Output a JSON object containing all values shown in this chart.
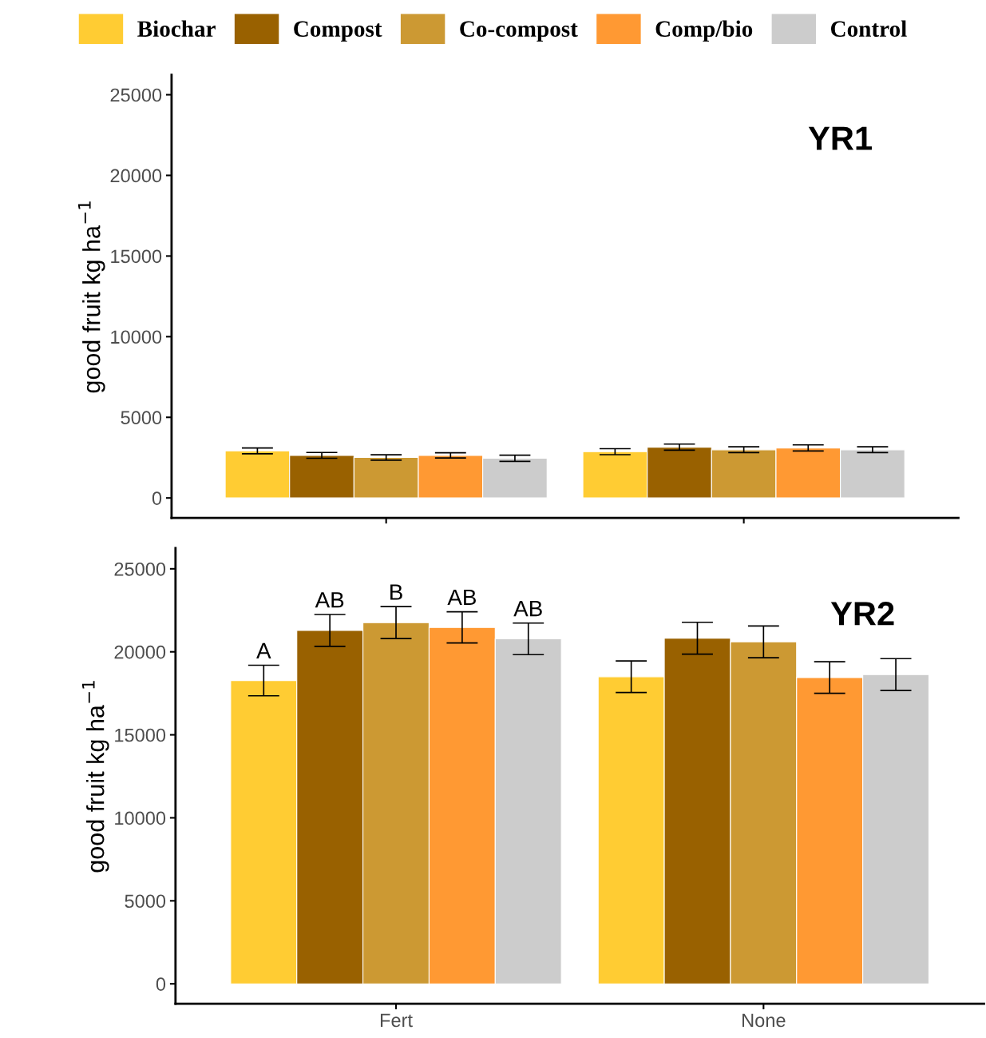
{
  "chart_data": [
    {
      "type": "bar",
      "title": "YR1",
      "ylabel": "good fruit kg ha$^{−1}$",
      "categories": [
        null,
        null
      ],
      "ylim": [
        -1240,
        26240
      ],
      "yticks": [
        0,
        5000,
        10000,
        15000,
        20000,
        25000
      ],
      "tick_labels": "y",
      "legend": "top",
      "grid": false,
      "series": [
        {
          "name": "Biochar",
          "color": "#ffcc33",
          "values": [
            2920,
            2870
          ],
          "errors": [
            180,
            185
          ]
        },
        {
          "name": "Compost",
          "color": "#996100",
          "values": [
            2640,
            3150
          ],
          "errors": [
            180,
            190
          ]
        },
        {
          "name": "Co-compost",
          "color": "#cc9933",
          "values": [
            2510,
            2990
          ],
          "errors": [
            170,
            180
          ]
        },
        {
          "name": "Comp/bio",
          "color": "#ff9933",
          "values": [
            2640,
            3100
          ],
          "errors": [
            160,
            190
          ]
        },
        {
          "name": "Control",
          "color": "#cccccc",
          "values": [
            2460,
            2990
          ],
          "errors": [
            190,
            180
          ]
        }
      ]
    },
    {
      "type": "bar",
      "title": "YR2",
      "ylabel": "good fruit kg ha$^{−1}$",
      "categories": [
        "Fert",
        "None"
      ],
      "ylim": [
        -1200,
        26250
      ],
      "yticks": [
        0,
        5000,
        10000,
        15000,
        20000,
        25000
      ],
      "grid": false,
      "series": [
        {
          "color": "#ffcc33",
          "values": [
            18270,
            18500
          ],
          "errors": [
            920,
            950
          ],
          "value_labels": [
            "A",
            null
          ]
        },
        {
          "color": "#996100",
          "values": [
            21290,
            20820
          ],
          "errors": [
            960,
            960
          ],
          "value_labels": [
            "AB",
            null
          ]
        },
        {
          "color": "#cc9933",
          "values": [
            21760,
            20600
          ],
          "errors": [
            960,
            960
          ],
          "value_labels": [
            "B",
            null
          ]
        },
        {
          "color": "#ff9933",
          "values": [
            21470,
            18450
          ],
          "errors": [
            940,
            950
          ],
          "value_labels": [
            "AB",
            null
          ]
        },
        {
          "color": "#cccccc",
          "values": [
            20780,
            18630
          ],
          "errors": [
            950,
            960
          ],
          "value_labels": [
            "AB",
            null
          ]
        }
      ]
    }
  ]
}
